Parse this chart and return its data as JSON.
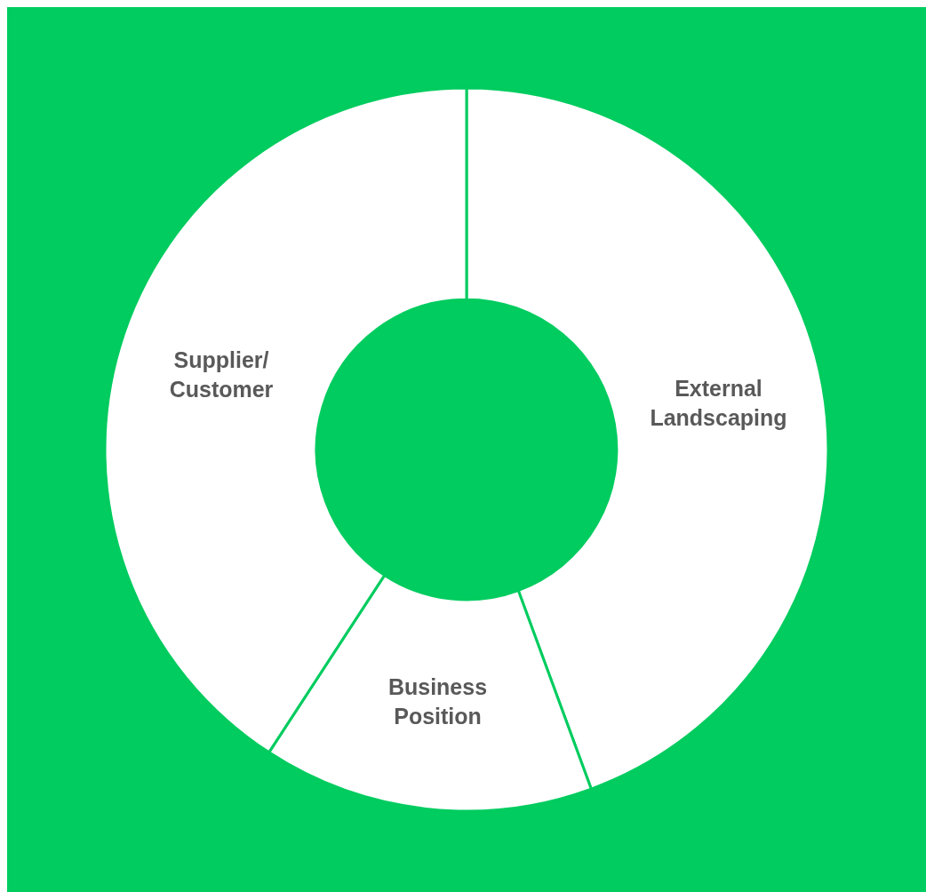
{
  "chart_data": {
    "type": "donut",
    "categories": [
      "External Landscaping",
      "Business Position",
      "Supplier/ Customer"
    ],
    "values": [
      44.4,
      14.8,
      40.8
    ],
    "colors": [
      "#ffffff",
      "#ffffff",
      "#ffffff"
    ],
    "legend": false
  }
}
